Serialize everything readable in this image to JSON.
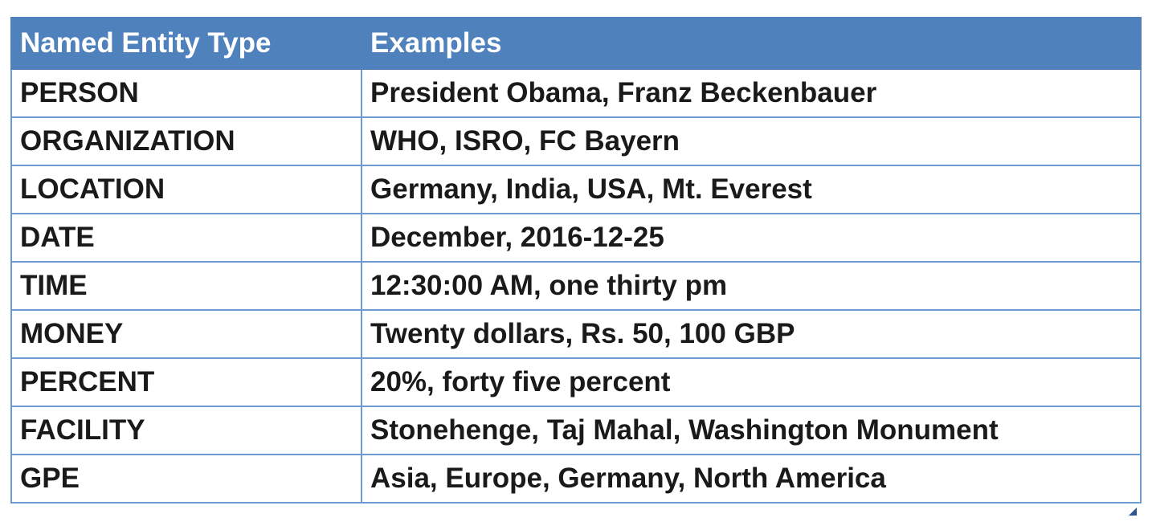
{
  "table": {
    "headers": [
      "Named Entity Type",
      "Examples"
    ],
    "rows": [
      [
        "PERSON",
        "President Obama, Franz Beckenbauer"
      ],
      [
        "ORGANIZATION",
        "WHO, ISRO, FC Bayern"
      ],
      [
        "LOCATION",
        "Germany, India, USA, Mt. Everest"
      ],
      [
        "DATE",
        "December, 2016-12-25"
      ],
      [
        "TIME",
        "12:30:00 AM, one thirty pm"
      ],
      [
        "MONEY",
        "Twenty dollars, Rs. 50, 100 GBP"
      ],
      [
        "PERCENT",
        "20%, forty five percent"
      ],
      [
        "FACILITY",
        "Stonehenge, Taj Mahal, Washington Monument"
      ],
      [
        "GPE",
        "Asia, Europe, Germany, North America"
      ]
    ]
  },
  "colors": {
    "header_background": "#4f81bd",
    "header_text": "#ffffff",
    "grid_border": "#6d9bd1",
    "body_text": "#1a1a1a"
  },
  "icons": {
    "resize_handle": "table-resize-handle-icon"
  }
}
